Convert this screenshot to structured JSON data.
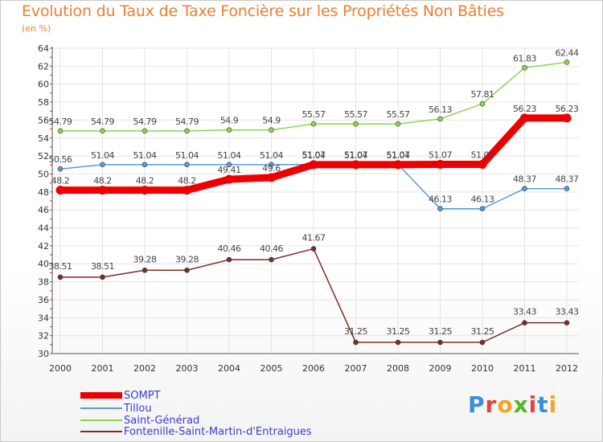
{
  "title": "Evolution du Taux de Taxe Foncière sur les Propriétés Non Bâties",
  "subtitle": "(en %)",
  "logo": {
    "text": "Proxiti",
    "letter_colors": [
      "#3a8fd8",
      "#e8413a",
      "#f2a51e",
      "#55b52f",
      "#e8413a",
      "#3a8fd8",
      "#f2a51e"
    ]
  },
  "chart_data": {
    "type": "line",
    "title": "Evolution du Taux de Taxe Foncière sur les Propriétés Non Bâties",
    "ylabel": "(en %)",
    "xlabel": "",
    "categories": [
      "2000",
      "2001",
      "2002",
      "2003",
      "2004",
      "2005",
      "2006",
      "2007",
      "2008",
      "2009",
      "2010",
      "2011",
      "2012"
    ],
    "ylim": [
      30,
      64
    ],
    "yticks": [
      30,
      32,
      34,
      36,
      38,
      40,
      42,
      44,
      46,
      48,
      50,
      52,
      54,
      56,
      58,
      60,
      62,
      64
    ],
    "grid": true,
    "legend_position": "bottom-left",
    "series": [
      {
        "name": "SOMPT",
        "color": "#ee0000",
        "values": [
          48.2,
          48.2,
          48.2,
          48.2,
          49.41,
          49.6,
          51.04,
          51.04,
          51.04,
          51.07,
          51.07,
          56.23,
          56.23
        ],
        "labels": [
          "48.2",
          "48.2",
          "48.2",
          "48.2",
          "49.41",
          "49.6",
          "51.04",
          "51.04",
          "51.04",
          "51.07",
          "51.07",
          "56.23",
          "56.23"
        ]
      },
      {
        "name": "Tillou",
        "color": "#5b9bd5",
        "values": [
          50.56,
          51.04,
          51.04,
          51.04,
          51.04,
          51.04,
          51.07,
          51.07,
          51.07,
          46.13,
          46.13,
          48.37,
          48.37
        ],
        "labels": [
          "50.56",
          "51.04",
          "51.04",
          "51.04",
          "51.04",
          "51.04",
          "51.07",
          "51.07",
          "51.07",
          "46.13",
          "46.13",
          "48.37",
          "48.37"
        ]
      },
      {
        "name": "Saint-Générad",
        "color": "#8fd44f",
        "values": [
          54.79,
          54.79,
          54.79,
          54.79,
          54.9,
          54.9,
          55.57,
          55.57,
          55.57,
          56.13,
          57.81,
          61.83,
          62.44
        ],
        "labels": [
          "54.79",
          "54.79",
          "54.79",
          "54.79",
          "54.9",
          "54.9",
          "55.57",
          "55.57",
          "55.57",
          "56.13",
          "57.81",
          "61.83",
          "62.44"
        ]
      },
      {
        "name": "Fontenille-Saint-Martin-d'Entraigues",
        "color": "#7a2e2a",
        "values": [
          38.51,
          38.51,
          39.28,
          39.28,
          40.46,
          40.46,
          41.67,
          31.25,
          31.25,
          31.25,
          31.25,
          33.43,
          33.43
        ],
        "labels": [
          "38.51",
          "38.51",
          "39.28",
          "39.28",
          "40.46",
          "40.46",
          "41.67",
          "31.25",
          "31.25",
          "31.25",
          "31.25",
          "33.43",
          "33.43"
        ]
      }
    ]
  }
}
